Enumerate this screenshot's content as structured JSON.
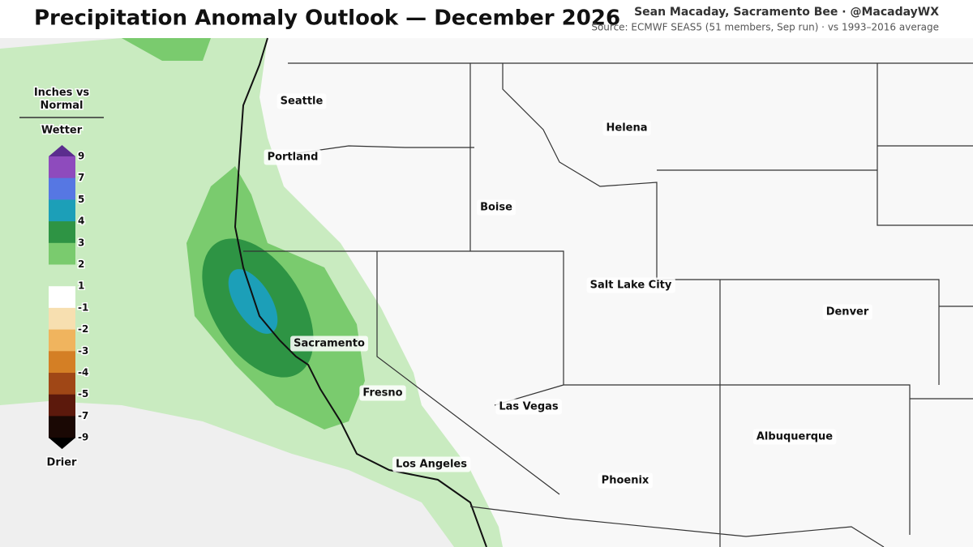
{
  "header": {
    "title": "Precipitation Anomaly Outlook — December 2026",
    "byline": "Sean Macaday, Sacramento Bee · @MacadayWX",
    "source": "Source: ECMWF SEAS5 (51 members, Sep run) · vs 1993–2016 average"
  },
  "legend": {
    "title": "Inches vs Normal",
    "top_label": "Wetter",
    "bottom_label": "Drier",
    "ticks": [
      9,
      7,
      5,
      4,
      3,
      2,
      1,
      -1,
      -2,
      -3,
      -4,
      -5,
      -7,
      -9
    ],
    "colors": [
      "#5b2d8e",
      "#8e4bbd",
      "#5677e3",
      "#1c9fb8",
      "#2e9444",
      "#7acb6e",
      "#c9ebc0",
      "#ffffff",
      "#f7dfb0",
      "#f0b45e",
      "#d47f25",
      "#a04716",
      "#5c190c",
      "#1a0804",
      "#000000"
    ]
  },
  "cities": [
    "Seattle",
    "Portland",
    "Helena",
    "Boise",
    "Salt Lake City",
    "Denver",
    "Sacramento",
    "Fresno",
    "Las Vegas",
    "Los Angeles",
    "Albuquerque",
    "Phoenix"
  ]
}
